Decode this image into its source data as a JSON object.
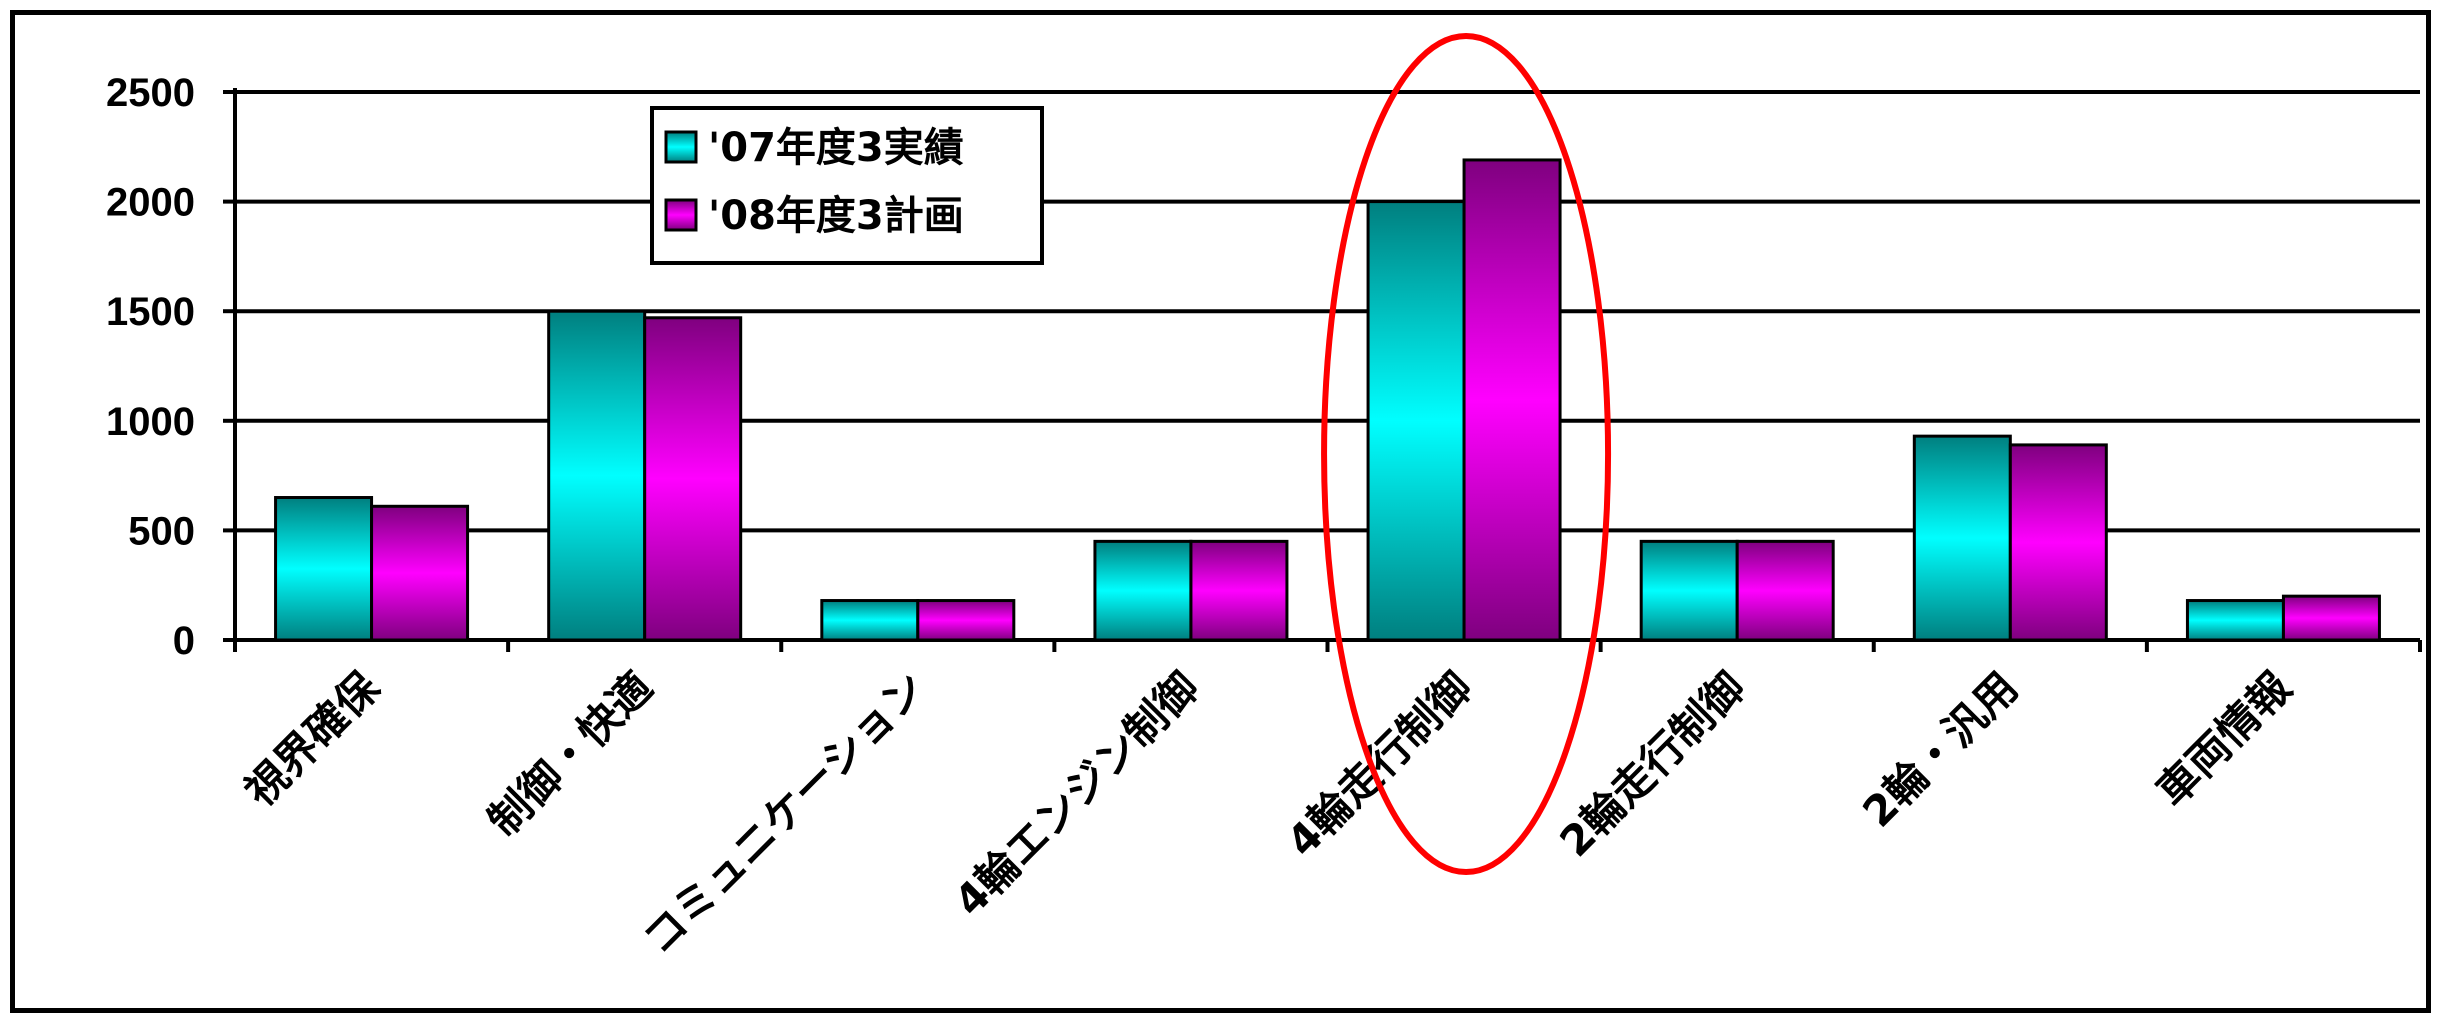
{
  "chart_data": {
    "type": "bar",
    "title": "",
    "xlabel": "",
    "ylabel": "",
    "ylim": [
      0,
      2500
    ],
    "yticks": [
      0,
      500,
      1000,
      1500,
      2000,
      2500
    ],
    "ytick_labels": [
      "0",
      "500",
      "1000",
      "1500",
      "2000",
      "2500"
    ],
    "grid": "horizontal",
    "legend_position": "top-left",
    "categories": [
      "視界確保",
      "制御・快適",
      "コミュニケーション",
      "4輪エンジン制御",
      "4輪走行制御",
      "2輪走行制御",
      "2輪・汎用",
      "車両情報"
    ],
    "series": [
      {
        "name": "'07年度3実績",
        "color": "#00FFFF",
        "dark": "#007F7F",
        "values": [
          650,
          1500,
          180,
          450,
          2000,
          450,
          930,
          180
        ]
      },
      {
        "name": "'08年度3計画",
        "color": "#FF00FF",
        "dark": "#7F007F",
        "values": [
          610,
          1470,
          180,
          450,
          2190,
          450,
          890,
          200
        ]
      }
    ],
    "annotation": {
      "type": "ellipse",
      "color": "#FF0000",
      "target_category": "4輪走行制御"
    }
  }
}
